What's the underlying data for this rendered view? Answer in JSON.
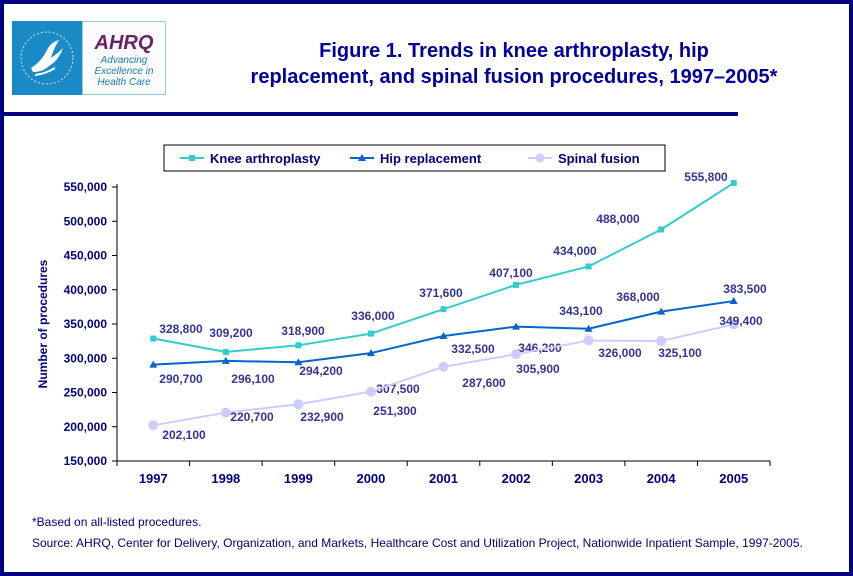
{
  "header": {
    "logo_hhs_text": "Department of Health & Human Services USA",
    "logo_mark": "AHRQ",
    "logo_tagline": [
      "Advancing",
      "Excellence in",
      "Health Care"
    ],
    "title_line1": "Figure 1. Trends in knee arthroplasty, hip",
    "title_line2": "replacement, and spinal fusion procedures, 1997–2005*"
  },
  "chart_data": {
    "type": "line",
    "title": "Figure 1. Trends in knee arthroplasty, hip replacement, and spinal fusion procedures, 1997–2005*",
    "xlabel": "",
    "ylabel": "Number of procedures",
    "ylim": [
      150000,
      550000
    ],
    "yticks": [
      "150,000",
      "200,000",
      "250,000",
      "300,000",
      "350,000",
      "400,000",
      "450,000",
      "500,000",
      "550,000"
    ],
    "ytick_values": [
      150000,
      200000,
      250000,
      300000,
      350000,
      400000,
      450000,
      500000,
      550000
    ],
    "grid": false,
    "legend": "top",
    "categories": [
      "1997",
      "1998",
      "1999",
      "2000",
      "2001",
      "2002",
      "2003",
      "2004",
      "2005"
    ],
    "series": [
      {
        "name": "Knee arthroplasty",
        "color": "#33cccc",
        "marker": "square",
        "values": [
          328800,
          309200,
          318900,
          336000,
          371600,
          407100,
          434000,
          488000,
          555800
        ],
        "labels": [
          "328,800",
          "309,200",
          "318,900",
          "336,000",
          "371,600",
          "407,100",
          "434,000",
          "488,000",
          "555,800"
        ]
      },
      {
        "name": "Hip replacement",
        "color": "#0066cc",
        "marker": "triangle",
        "values": [
          290700,
          296100,
          294200,
          307500,
          332500,
          346200,
          343100,
          368000,
          383500
        ],
        "labels": [
          "290,700",
          "296,100",
          "294,200",
          "307,500",
          "332,500",
          "346,200",
          "343,100",
          "368,000",
          "383,500"
        ]
      },
      {
        "name": "Spinal fusion",
        "color": "#ccccff",
        "marker": "circle",
        "values": [
          202100,
          220700,
          232900,
          251300,
          287600,
          305900,
          326000,
          325100,
          349400
        ],
        "labels": [
          "202,100",
          "220,700",
          "232,900",
          "251,300",
          "287,600",
          "305,900",
          "326,000",
          "325,100",
          "349,400"
        ]
      }
    ]
  },
  "footer": {
    "note": "*Based on all-listed procedures.",
    "source": "Source: AHRQ, Center for Delivery, Organization, and Markets, Healthcare Cost and Utilization Project, Nationwide Inpatient Sample, 1997-2005."
  }
}
